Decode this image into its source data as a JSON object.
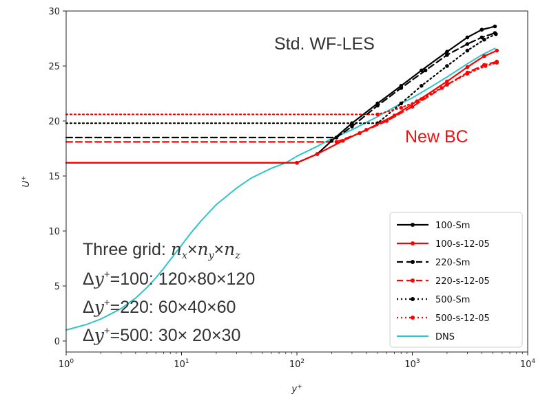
{
  "chart_data": {
    "type": "line",
    "xlabel": "y+",
    "ylabel": "U+",
    "xscale": "log",
    "xlim": [
      1,
      10000
    ],
    "ylim": [
      -1,
      30
    ],
    "grid": false,
    "legend_position": "lower-right",
    "x_ticks": [
      {
        "value": 1,
        "label_base": "10",
        "label_exp": "0"
      },
      {
        "value": 10,
        "label_base": "10",
        "label_exp": "1"
      },
      {
        "value": 100,
        "label_base": "10",
        "label_exp": "2"
      },
      {
        "value": 1000,
        "label_base": "10",
        "label_exp": "3"
      },
      {
        "value": 10000,
        "label_base": "10",
        "label_exp": "4"
      }
    ],
    "y_ticks": [
      0,
      5,
      10,
      15,
      20,
      25,
      30
    ],
    "series": [
      {
        "name": "100-Sm",
        "color": "#000000",
        "style": "solid",
        "points": [
          [
            1,
            16.2
          ],
          [
            100,
            16.2
          ],
          [
            150,
            17.0
          ],
          [
            200,
            18.2
          ],
          [
            300,
            19.8
          ],
          [
            500,
            21.6
          ],
          [
            800,
            23.2
          ],
          [
            1200,
            24.6
          ],
          [
            2000,
            26.3
          ],
          [
            3000,
            27.6
          ],
          [
            4000,
            28.3
          ],
          [
            5200,
            28.6
          ]
        ]
      },
      {
        "name": "100-s-12-05",
        "color": "#ff0000",
        "style": "solid",
        "points": [
          [
            1,
            16.2
          ],
          [
            100,
            16.2
          ],
          [
            150,
            17.0
          ],
          [
            250,
            18.2
          ],
          [
            400,
            19.2
          ],
          [
            700,
            20.5
          ],
          [
            1100,
            21.8
          ],
          [
            2000,
            23.6
          ],
          [
            3000,
            24.9
          ],
          [
            4200,
            25.9
          ],
          [
            5400,
            26.4
          ]
        ]
      },
      {
        "name": "220-Sm",
        "color": "#000000",
        "style": "dashed",
        "points": [
          [
            1,
            18.5
          ],
          [
            220,
            18.5
          ],
          [
            300,
            19.5
          ],
          [
            500,
            21.4
          ],
          [
            800,
            23.0
          ],
          [
            1300,
            24.6
          ],
          [
            2000,
            26.0
          ],
          [
            3000,
            27.0
          ],
          [
            4000,
            27.6
          ],
          [
            5200,
            28.0
          ]
        ]
      },
      {
        "name": "220-s-12-05",
        "color": "#ff0000",
        "style": "dashed",
        "points": [
          [
            1,
            18.1
          ],
          [
            220,
            18.1
          ],
          [
            350,
            18.9
          ],
          [
            600,
            20.0
          ],
          [
            1000,
            21.3
          ],
          [
            1800,
            23.0
          ],
          [
            3000,
            24.4
          ],
          [
            4200,
            25.1
          ],
          [
            5400,
            25.4
          ]
        ]
      },
      {
        "name": "500-Sm",
        "color": "#000000",
        "style": "dotted",
        "points": [
          [
            1,
            19.8
          ],
          [
            500,
            19.8
          ],
          [
            800,
            21.6
          ],
          [
            1200,
            23.2
          ],
          [
            2000,
            25.0
          ],
          [
            3000,
            26.4
          ],
          [
            4200,
            27.4
          ],
          [
            5300,
            27.9
          ]
        ]
      },
      {
        "name": "500-s-12-05",
        "color": "#ff0000",
        "style": "dotted",
        "points": [
          [
            1,
            20.6
          ],
          [
            500,
            20.6
          ],
          [
            800,
            21.2
          ],
          [
            1200,
            22.0
          ],
          [
            2000,
            23.3
          ],
          [
            3000,
            24.3
          ],
          [
            4300,
            25.0
          ],
          [
            5400,
            25.3
          ]
        ]
      },
      {
        "name": "DNS",
        "color": "#2ec4c8",
        "style": "solid",
        "points": [
          [
            1,
            1.0
          ],
          [
            1.5,
            1.5
          ],
          [
            2,
            2.0
          ],
          [
            3,
            2.95
          ],
          [
            4,
            3.9
          ],
          [
            5,
            4.85
          ],
          [
            6,
            5.75
          ],
          [
            7,
            6.6
          ],
          [
            8,
            7.4
          ],
          [
            10,
            8.7
          ],
          [
            12,
            9.8
          ],
          [
            15,
            11.0
          ],
          [
            20,
            12.4
          ],
          [
            30,
            13.9
          ],
          [
            40,
            14.8
          ],
          [
            60,
            15.7
          ],
          [
            80,
            16.2
          ],
          [
            100,
            16.8
          ],
          [
            150,
            17.7
          ],
          [
            200,
            18.4
          ],
          [
            300,
            19.2
          ],
          [
            500,
            20.4
          ],
          [
            800,
            21.6
          ],
          [
            1000,
            22.1
          ],
          [
            1500,
            23.2
          ],
          [
            2000,
            24.0
          ],
          [
            3000,
            25.2
          ],
          [
            4000,
            26.0
          ],
          [
            5200,
            26.6
          ]
        ]
      }
    ],
    "annotations": {
      "std": "Std. WF-LES",
      "newbc": "New BC"
    },
    "grid_text": {
      "line1": "Three grid: ",
      "line1_math": "n",
      "dy_base": "Δ",
      "dy_var": "y",
      "dy_sup": "+",
      "row2_eq": "=100: 120×80×120",
      "row3_eq": "=220:   60×40×60",
      "row4_eq": "=500:   30× 20×30",
      "nx_sub": "x",
      "ny_sub": "y",
      "nz_sub": "z",
      "times": "×"
    }
  }
}
